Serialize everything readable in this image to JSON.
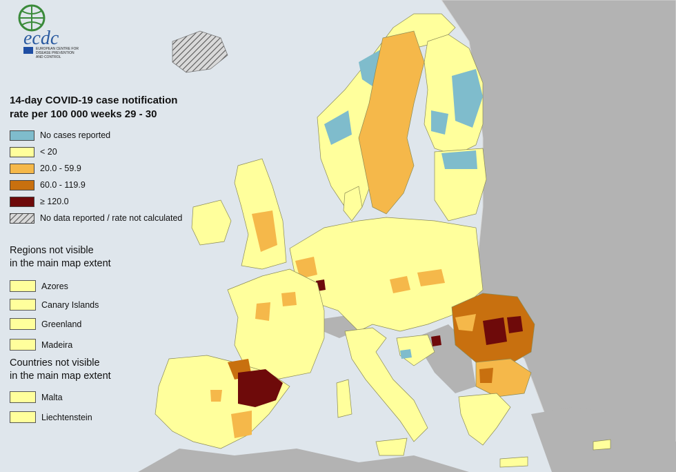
{
  "logo": {
    "text": "ecdc",
    "subtitle_lines": [
      "EUROPEAN CENTRE FOR",
      "DISEASE PREVENTION",
      "AND CONTROL"
    ]
  },
  "legend": {
    "title_line1": "14-day COVID-19 case notification",
    "title_line2": "rate per 100 000 weeks 29 - 30",
    "items": [
      {
        "label": "No cases reported",
        "color": "#7fbccc"
      },
      {
        "label": "< 20",
        "color": "#ffff9c"
      },
      {
        "label": "20.0 - 59.9",
        "color": "#f5b84a"
      },
      {
        "label": "60.0 - 119.9",
        "color": "#c8700f"
      },
      {
        "label": "≥ 120.0",
        "color": "#6e0a0a"
      },
      {
        "label": "No data reported / rate not calculated",
        "color": "hatched"
      }
    ]
  },
  "regions_not_visible": {
    "heading_line1": "Regions not visible",
    "heading_line2": "in the main map extent",
    "items": [
      "Azores",
      "Canary Islands",
      "Greenland",
      "Madeira"
    ]
  },
  "countries_not_visible": {
    "heading_line1": "Countries not visible",
    "heading_line2": "in the main map extent",
    "items": [
      "Malta",
      "Liechtenstein"
    ]
  },
  "colors": {
    "sea": "#dfe6ec",
    "non_eu_land": "#b3b3b3",
    "border": "#8a8a55"
  }
}
